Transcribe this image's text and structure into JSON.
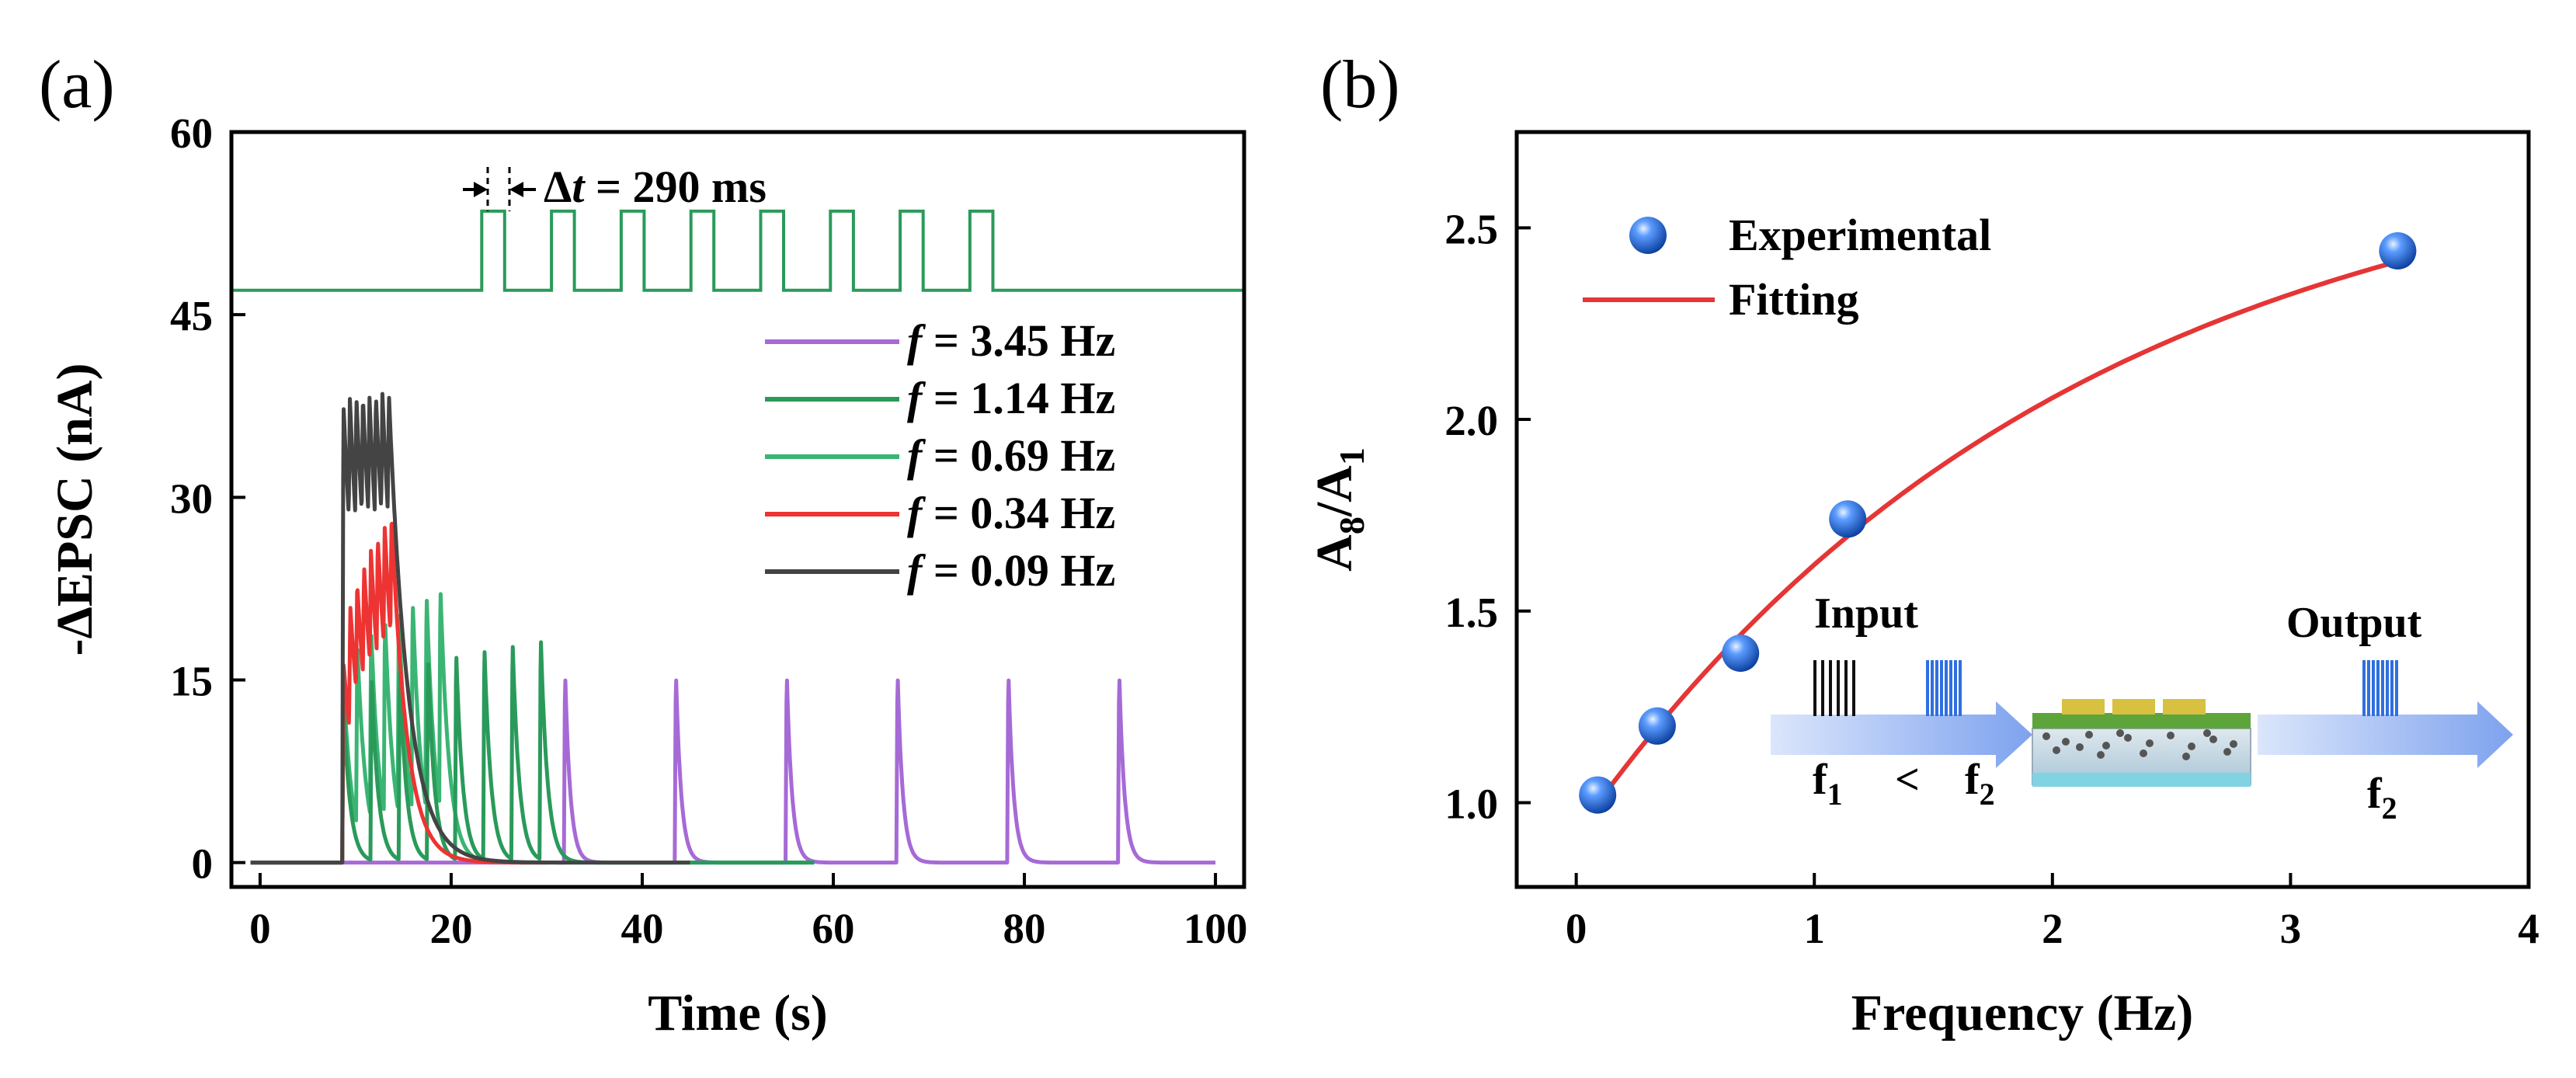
{
  "chart_data": [
    {
      "panel": "(a)",
      "type": "line",
      "xlabel": "Time (s)",
      "ylabel": "-ΔEPSC (nA)",
      "xlim": [
        -3,
        103
      ],
      "ylim": [
        -2,
        60
      ],
      "xticks": [
        "0",
        "20",
        "40",
        "60",
        "80",
        "100"
      ],
      "yticks": [
        "0",
        "15",
        "30",
        "45",
        "60"
      ],
      "pulse_annotation": {
        "symbol": "Δ",
        "var": "t",
        "rest": " = 290 ms",
        "pulse_width_s": 0.29
      },
      "pulse_train": {
        "baseline": 47,
        "high": 53.5,
        "x_start": 0,
        "x_end": 100,
        "pulse_times": [
          23.2,
          30.5,
          37.8,
          45.1,
          52.4,
          59.7,
          67.0,
          74.3
        ],
        "pulse_width": 2.4
      },
      "series": [
        {
          "name": "f = 3.45 Hz",
          "label_prefix": "f",
          "label_value": " = 3.45 Hz",
          "color": "#a66ad6",
          "interval": 11.6,
          "peak_first": 15.8,
          "peak_ratio": 1.0,
          "x_start": 31.8,
          "pulses": 6,
          "tau": 0.55,
          "x_end": 100
        },
        {
          "name": "f = 1.14 Hz",
          "label_prefix": "f",
          "label_value": " = 1.14 Hz",
          "color": "#2a9a5a",
          "interval": 2.95,
          "peak_first": 13.4,
          "peak_ratio": 1.41,
          "x_start": 8.6,
          "pulses": 8,
          "tau": 0.7,
          "x_end": 58
        },
        {
          "name": "f = 0.69 Hz",
          "label_prefix": "f",
          "label_value": " = 0.69 Hz",
          "color": "#3ab573",
          "interval": 1.45,
          "peak_first": 15.2,
          "peak_ratio": 1.5,
          "x_start": 8.6,
          "pulses": 8,
          "tau": 0.9,
          "x_end": 58
        },
        {
          "name": "f = 0.34 Hz",
          "label_prefix": "f",
          "label_value": " = 0.34 Hz",
          "color": "#ee3333",
          "interval": 0.72,
          "peak_first": 16.5,
          "peak_ratio": 1.73,
          "x_start": 8.6,
          "pulses": 8,
          "tau": 1.6,
          "x_end": 30
        },
        {
          "name": "f = 0.09 Hz",
          "label_prefix": "f",
          "label_value": " = 0.09 Hz",
          "color": "#444444",
          "interval": 0.68,
          "peak_first": 37.8,
          "peak_ratio": 1.02,
          "x_start": 8.6,
          "pulses": 8,
          "tau": 2.0,
          "x_end": 45
        }
      ]
    },
    {
      "panel": "(b)",
      "type": "scatter",
      "xlabel": "Frequency (Hz)",
      "ylabel_main": "A",
      "ylabel_sub1": "8",
      "ylabel_slash": "/A",
      "ylabel_sub2": "1",
      "xlim": [
        -0.25,
        4.0
      ],
      "ylim": [
        0.78,
        2.75
      ],
      "xticks": [
        "0",
        "1",
        "2",
        "3",
        "4"
      ],
      "yticks": [
        "1.0",
        "1.5",
        "2.0",
        "2.5"
      ],
      "experimental": {
        "name": "Experimental",
        "color": "#1e5fd0",
        "x": [
          0.09,
          0.34,
          0.69,
          1.14,
          3.45
        ],
        "y": [
          1.02,
          1.2,
          1.39,
          1.74,
          2.44
        ]
      },
      "fitting": {
        "name": "Fitting",
        "color": "#e53535",
        "x_range": [
          0.09,
          3.45
        ],
        "model": "A + B*(1-exp(-x/t))",
        "A": 0.92,
        "B": 1.85,
        "t": 2.1
      },
      "inset": {
        "input_label": "Input",
        "output_label": "Output",
        "f1": "f",
        "f1_sub": "1",
        "less_than": "<",
        "f2": "f",
        "f2_sub": "2",
        "f_out": "f",
        "f_out_sub": "2"
      }
    }
  ]
}
